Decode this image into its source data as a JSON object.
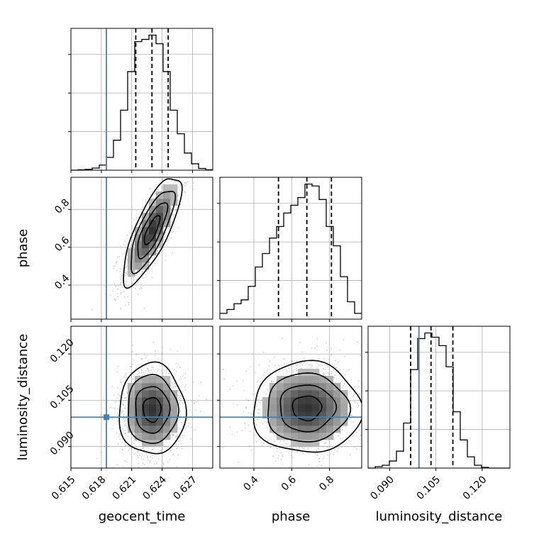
{
  "chart_data": {
    "type": "corner",
    "parameters": [
      "geocent_time",
      "phase",
      "luminosity_distance"
    ],
    "axis_labels": {
      "x": [
        "geocent_time",
        "phase",
        "luminosity_distance"
      ],
      "y": [
        "phase",
        "luminosity_distance"
      ]
    },
    "truth": {
      "geocent_time": 0.6185,
      "phase": null,
      "luminosity_distance": 0.0995
    },
    "truth_color": "#4682b4",
    "grid": true,
    "ranges": {
      "geocent_time": [
        0.615,
        0.629
      ],
      "phase": [
        0.22,
        0.97
      ],
      "luminosity_distance": [
        0.083,
        0.129
      ]
    },
    "ticks": {
      "geocent_time": [
        "0.615",
        "0.618",
        "0.621",
        "0.624",
        "0.627"
      ],
      "phase": [
        "0.4",
        "0.6",
        "0.8"
      ],
      "luminosity_distance": [
        "0.090",
        "0.105",
        "0.120"
      ]
    },
    "tick_values": {
      "geocent_time": [
        0.615,
        0.618,
        0.621,
        0.624,
        0.627
      ],
      "phase": [
        0.4,
        0.6,
        0.8
      ],
      "luminosity_distance": [
        0.09,
        0.105,
        0.12
      ]
    },
    "histograms": {
      "geocent_time": {
        "bin_edges": [
          0.615,
          0.6157,
          0.6164,
          0.6171,
          0.6178,
          0.6185,
          0.6192,
          0.6199,
          0.6206,
          0.6213,
          0.622,
          0.6227,
          0.6234,
          0.6241,
          0.6248,
          0.6255,
          0.6262,
          0.6269,
          0.6276,
          0.6283,
          0.629
        ],
        "counts": [
          0,
          1,
          2,
          5,
          12,
          30,
          70,
          140,
          230,
          300,
          305,
          315,
          295,
          230,
          140,
          85,
          40,
          15,
          4,
          1
        ],
        "quantiles": [
          0.6214,
          0.623,
          0.6246
        ]
      },
      "phase": {
        "bin_edges": [
          0.22,
          0.2575,
          0.295,
          0.3325,
          0.37,
          0.4075,
          0.445,
          0.4825,
          0.52,
          0.5575,
          0.595,
          0.6325,
          0.67,
          0.7075,
          0.745,
          0.7825,
          0.82,
          0.8575,
          0.895,
          0.9325,
          0.97
        ],
        "counts": [
          3,
          5,
          8,
          10,
          17,
          27,
          34,
          42,
          48,
          55,
          59,
          63,
          70,
          69,
          62,
          48,
          38,
          22,
          9,
          3
        ],
        "quantiles": [
          0.53,
          0.68,
          0.81
        ]
      },
      "luminosity_distance": {
        "bin_edges": [
          0.083,
          0.0853,
          0.0876,
          0.0899,
          0.0922,
          0.0945,
          0.0968,
          0.0991,
          0.1014,
          0.1037,
          0.106,
          0.1083,
          0.1106,
          0.1129,
          0.1152,
          0.1175,
          0.1198,
          0.1221,
          0.1244,
          0.1267,
          0.129
        ],
        "counts": [
          0,
          1,
          2,
          5,
          12,
          32,
          70,
          92,
          96,
          93,
          87,
          72,
          40,
          20,
          8,
          2,
          0.5,
          0,
          0,
          0
        ],
        "quantiles": [
          0.0968,
          0.1034,
          0.1105
        ]
      }
    },
    "joint": {
      "geocent_time|phase": {
        "mean": [
          0.623,
          0.69
        ],
        "sd": [
          0.0014,
          0.14
        ],
        "rho": 0.78
      },
      "geocent_time|luminosity_distance": {
        "mean": [
          0.623,
          0.102
        ],
        "sd": [
          0.0016,
          0.0072
        ],
        "rho": 0.0
      },
      "phase|luminosity_distance": {
        "mean": [
          0.68,
          0.1025
        ],
        "sd": [
          0.14,
          0.0072
        ],
        "rho": 0.0
      }
    }
  }
}
